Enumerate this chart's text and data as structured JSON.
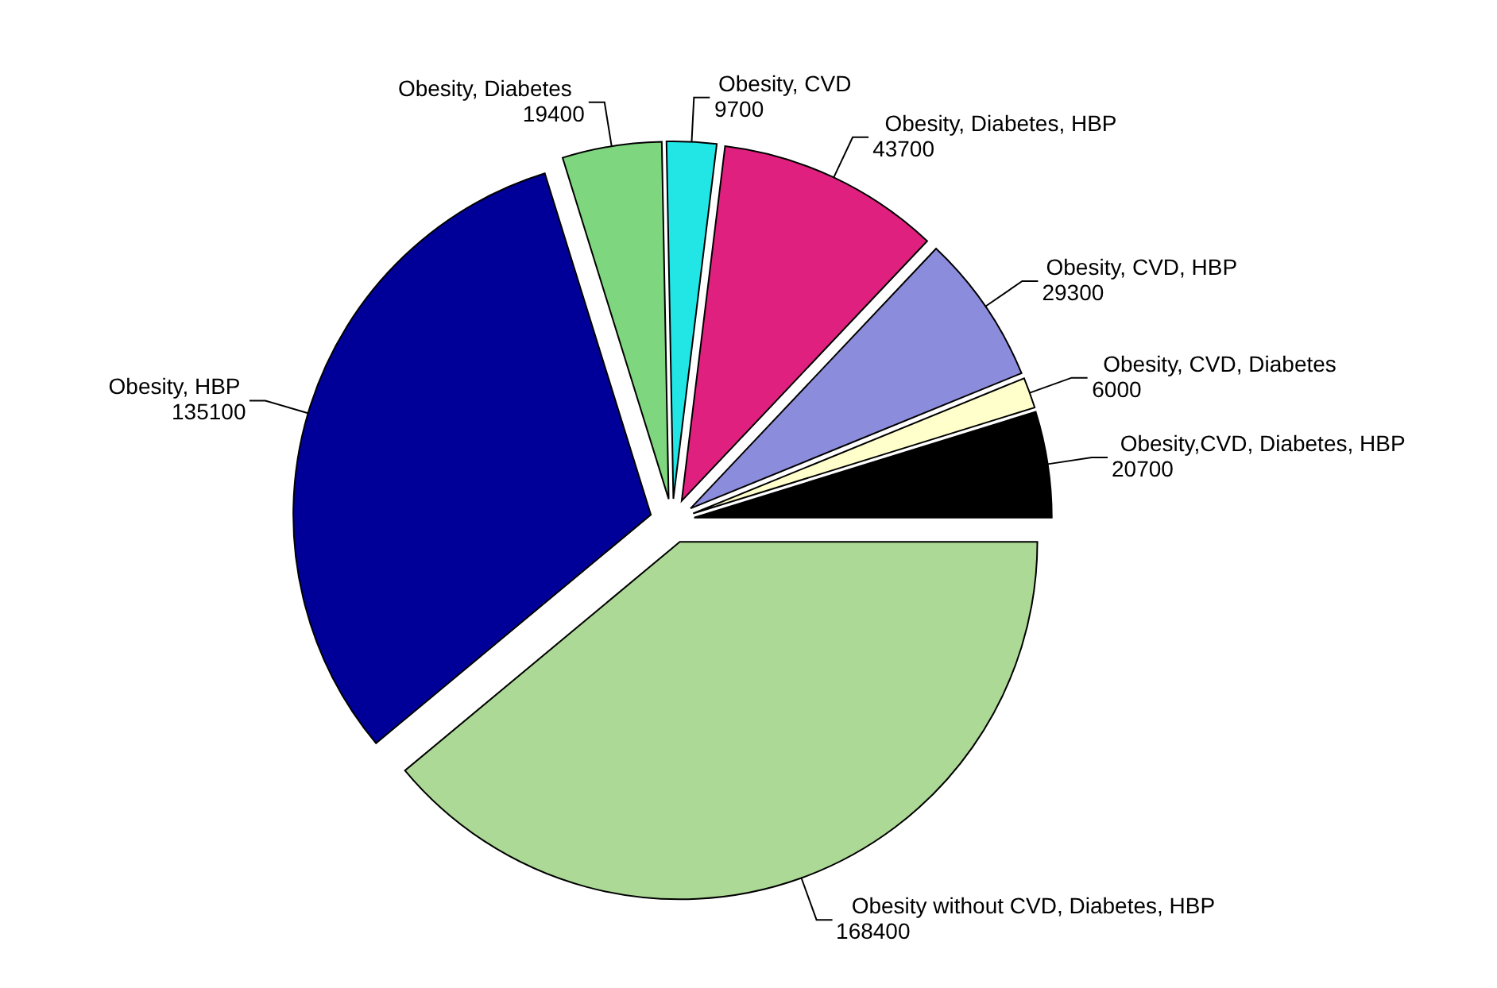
{
  "chart_data": {
    "type": "pie",
    "categories": [
      "Obesity,CVD, Diabetes, HBP",
      "Obesity, CVD, Diabetes",
      "Obesity, CVD, HBP",
      "Obesity, Diabetes, HBP",
      "Obesity, CVD",
      "Obesity, Diabetes",
      "Obesity, HBP",
      "Obesity without CVD, Diabetes, HBP"
    ],
    "values": [
      20700,
      6000,
      29300,
      43700,
      9700,
      19400,
      135100,
      168400
    ],
    "colors": [
      "#000000",
      "#ffffcc",
      "#8c8cdc",
      "#e0207f",
      "#22e6e6",
      "#7ed67e",
      "#000099",
      "#acd995"
    ],
    "data_labels": true
  }
}
